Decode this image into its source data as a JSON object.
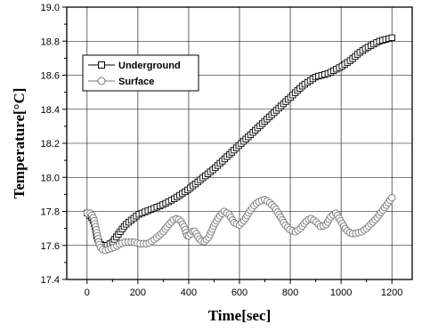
{
  "chart_data": {
    "type": "line",
    "xlabel": "Time[sec]",
    "ylabel": "Temperature[°C]",
    "xlim": [
      -80,
      1280
    ],
    "ylim": [
      17.4,
      19.0
    ],
    "xticks": [
      0,
      200,
      400,
      600,
      800,
      1000,
      1200
    ],
    "yticks": [
      17.4,
      17.6,
      17.8,
      18.0,
      18.2,
      18.4,
      18.6,
      18.8,
      19.0
    ],
    "xtick_labels": [
      "0",
      "200",
      "400",
      "600",
      "800",
      "1000",
      "1200"
    ],
    "ytick_labels": [
      "17.4",
      "17.6",
      "17.8",
      "18.0",
      "18.2",
      "18.4",
      "18.6",
      "18.8",
      "19.0"
    ],
    "grid": true,
    "legend_position": "top-left",
    "series": [
      {
        "name": "Underground",
        "marker": "square",
        "points": [
          [
            0,
            17.79
          ],
          [
            20,
            17.76
          ],
          [
            30,
            17.72
          ],
          [
            40,
            17.64
          ],
          [
            50,
            17.61
          ],
          [
            60,
            17.6
          ],
          [
            80,
            17.6
          ],
          [
            100,
            17.62
          ],
          [
            120,
            17.66
          ],
          [
            150,
            17.72
          ],
          [
            200,
            17.78
          ],
          [
            250,
            17.81
          ],
          [
            300,
            17.84
          ],
          [
            350,
            17.88
          ],
          [
            400,
            17.93
          ],
          [
            450,
            17.99
          ],
          [
            500,
            18.05
          ],
          [
            550,
            18.12
          ],
          [
            600,
            18.19
          ],
          [
            650,
            18.26
          ],
          [
            700,
            18.33
          ],
          [
            750,
            18.4
          ],
          [
            800,
            18.47
          ],
          [
            850,
            18.54
          ],
          [
            900,
            18.59
          ],
          [
            950,
            18.61
          ],
          [
            1000,
            18.65
          ],
          [
            1040,
            18.69
          ],
          [
            1070,
            18.73
          ],
          [
            1100,
            18.76
          ],
          [
            1150,
            18.8
          ],
          [
            1200,
            18.82
          ]
        ]
      },
      {
        "name": "Surface",
        "marker": "circle",
        "points": [
          [
            0,
            17.79
          ],
          [
            15,
            17.79
          ],
          [
            25,
            17.76
          ],
          [
            35,
            17.7
          ],
          [
            45,
            17.62
          ],
          [
            55,
            17.58
          ],
          [
            70,
            17.57
          ],
          [
            90,
            17.58
          ],
          [
            110,
            17.59
          ],
          [
            130,
            17.61
          ],
          [
            150,
            17.62
          ],
          [
            180,
            17.62
          ],
          [
            210,
            17.61
          ],
          [
            240,
            17.61
          ],
          [
            270,
            17.64
          ],
          [
            300,
            17.68
          ],
          [
            320,
            17.72
          ],
          [
            340,
            17.75
          ],
          [
            355,
            17.76
          ],
          [
            370,
            17.74
          ],
          [
            385,
            17.7
          ],
          [
            395,
            17.65
          ],
          [
            410,
            17.67
          ],
          [
            420,
            17.69
          ],
          [
            430,
            17.67
          ],
          [
            445,
            17.63
          ],
          [
            460,
            17.62
          ],
          [
            480,
            17.65
          ],
          [
            500,
            17.72
          ],
          [
            520,
            17.77
          ],
          [
            540,
            17.8
          ],
          [
            560,
            17.78
          ],
          [
            580,
            17.73
          ],
          [
            600,
            17.72
          ],
          [
            620,
            17.75
          ],
          [
            640,
            17.8
          ],
          [
            660,
            17.84
          ],
          [
            680,
            17.86
          ],
          [
            700,
            17.87
          ],
          [
            720,
            17.85
          ],
          [
            740,
            17.82
          ],
          [
            760,
            17.77
          ],
          [
            780,
            17.72
          ],
          [
            800,
            17.69
          ],
          [
            820,
            17.68
          ],
          [
            840,
            17.7
          ],
          [
            860,
            17.74
          ],
          [
            880,
            17.76
          ],
          [
            900,
            17.74
          ],
          [
            920,
            17.71
          ],
          [
            940,
            17.72
          ],
          [
            960,
            17.77
          ],
          [
            980,
            17.79
          ],
          [
            1000,
            17.74
          ],
          [
            1020,
            17.69
          ],
          [
            1040,
            17.67
          ],
          [
            1060,
            17.67
          ],
          [
            1080,
            17.68
          ],
          [
            1100,
            17.7
          ],
          [
            1120,
            17.73
          ],
          [
            1140,
            17.76
          ],
          [
            1160,
            17.8
          ],
          [
            1180,
            17.84
          ],
          [
            1200,
            17.88
          ]
        ]
      }
    ]
  }
}
